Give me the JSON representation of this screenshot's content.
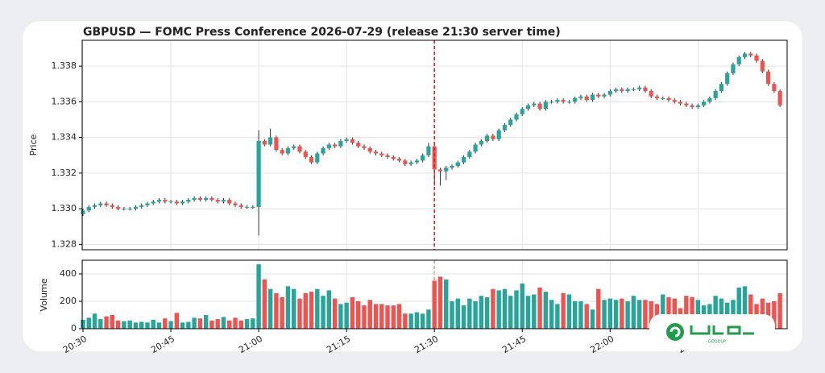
{
  "chart_data": [
    {
      "type": "candlestick",
      "title": "GBPUSD — FOMC Press Conference 2026-07-29 (release 21:30 server time)",
      "ylabel": "Price",
      "up_color": "#26a69a",
      "down_color": "#ef5350",
      "vline": "21:30",
      "vline_color": "#d62728",
      "ylim": [
        1.3277,
        1.33945
      ],
      "yticks": [
        1.328,
        {
          "value": 1.33,
          "label": "1.330"
        },
        1.332,
        1.334,
        1.336,
        1.338
      ],
      "grid": true,
      "x": [
        "20:30",
        "20:31",
        "20:32",
        "20:33",
        "20:34",
        "20:35",
        "20:36",
        "20:37",
        "20:38",
        "20:39",
        "20:40",
        "20:41",
        "20:42",
        "20:43",
        "20:44",
        "20:45",
        "20:46",
        "20:47",
        "20:48",
        "20:49",
        "20:50",
        "20:51",
        "20:52",
        "20:53",
        "20:54",
        "20:55",
        "20:56",
        "20:57",
        "20:58",
        "20:59",
        "21:00",
        "21:01",
        "21:02",
        "21:03",
        "21:04",
        "21:05",
        "21:06",
        "21:07",
        "21:08",
        "21:09",
        "21:10",
        "21:11",
        "21:12",
        "21:13",
        "21:14",
        "21:15",
        "21:16",
        "21:17",
        "21:18",
        "21:19",
        "21:20",
        "21:21",
        "21:22",
        "21:23",
        "21:24",
        "21:25",
        "21:26",
        "21:27",
        "21:28",
        "21:29",
        "21:30",
        "21:31",
        "21:32",
        "21:33",
        "21:34",
        "21:35",
        "21:36",
        "21:37",
        "21:38",
        "21:39",
        "21:40",
        "21:41",
        "21:42",
        "21:43",
        "21:44",
        "21:45",
        "21:46",
        "21:47",
        "21:48",
        "21:49",
        "21:50",
        "21:51",
        "21:52",
        "21:53",
        "21:54",
        "21:55",
        "21:56",
        "21:57",
        "21:58",
        "21:59",
        "22:00",
        "22:01",
        "22:02",
        "22:03",
        "22:04",
        "22:05",
        "22:06",
        "22:07",
        "22:08",
        "22:09",
        "22:10",
        "22:11",
        "22:12",
        "22:13",
        "22:14",
        "22:15",
        "22:16",
        "22:17",
        "22:18",
        "22:19",
        "22:20",
        "22:21",
        "22:22",
        "22:23",
        "22:24",
        "22:25",
        "22:26",
        "22:27",
        "22:28",
        "22:29"
      ],
      "open": [
        1.3297,
        1.3299,
        1.3301,
        1.3302,
        1.3303,
        1.3302,
        1.3301,
        1.33,
        1.33,
        1.33,
        1.3301,
        1.3302,
        1.3303,
        1.3304,
        1.3305,
        1.3304,
        1.3304,
        1.3303,
        1.3304,
        1.3305,
        1.3306,
        1.3305,
        1.3306,
        1.3305,
        1.3304,
        1.3305,
        1.3303,
        1.3302,
        1.3301,
        1.3301,
        1.3301,
        1.3338,
        1.3336,
        1.334,
        1.3333,
        1.3331,
        1.3334,
        1.3335,
        1.3332,
        1.3329,
        1.3326,
        1.3331,
        1.3334,
        1.3336,
        1.3335,
        1.3338,
        1.3339,
        1.3337,
        1.3335,
        1.3334,
        1.3332,
        1.3331,
        1.333,
        1.3329,
        1.3328,
        1.3327,
        1.3325,
        1.3326,
        1.3327,
        1.333,
        1.3335,
        1.3322,
        1.3321,
        1.3323,
        1.3324,
        1.3326,
        1.3329,
        1.3332,
        1.3336,
        1.3338,
        1.3341,
        1.3339,
        1.3344,
        1.3347,
        1.335,
        1.3353,
        1.3356,
        1.3358,
        1.3359,
        1.3356,
        1.336,
        1.336,
        1.3361,
        1.336,
        1.336,
        1.3362,
        1.3363,
        1.3361,
        1.3364,
        1.3363,
        1.3364,
        1.3366,
        1.3367,
        1.3366,
        1.3367,
        1.3367,
        1.3368,
        1.3366,
        1.3363,
        1.3362,
        1.3362,
        1.3361,
        1.336,
        1.3359,
        1.3358,
        1.3357,
        1.3358,
        1.336,
        1.3362,
        1.3366,
        1.337,
        1.3376,
        1.3381,
        1.3385,
        1.3387,
        1.3386,
        1.3383,
        1.3377,
        1.337,
        1.3366
      ],
      "high": [
        1.33,
        1.3302,
        1.3303,
        1.3304,
        1.3304,
        1.3303,
        1.3302,
        1.3301,
        1.3301,
        1.3302,
        1.3303,
        1.3304,
        1.3305,
        1.3306,
        1.3306,
        1.3305,
        1.3305,
        1.3305,
        1.3306,
        1.3307,
        1.3307,
        1.3307,
        1.3307,
        1.3306,
        1.3306,
        1.3306,
        1.3304,
        1.3303,
        1.3302,
        1.3302,
        1.3344,
        1.3339,
        1.3345,
        1.3341,
        1.3334,
        1.3335,
        1.3336,
        1.3336,
        1.3333,
        1.333,
        1.3332,
        1.3335,
        1.3337,
        1.3337,
        1.3339,
        1.334,
        1.334,
        1.3338,
        1.3336,
        1.3335,
        1.3333,
        1.3332,
        1.3331,
        1.333,
        1.3329,
        1.3328,
        1.3327,
        1.3328,
        1.3331,
        1.3337,
        1.3336,
        1.3323,
        1.3324,
        1.3325,
        1.3327,
        1.333,
        1.3333,
        1.3337,
        1.3339,
        1.3342,
        1.3342,
        1.3345,
        1.3348,
        1.3351,
        1.3354,
        1.3357,
        1.3359,
        1.336,
        1.336,
        1.3361,
        1.3361,
        1.3362,
        1.3362,
        1.3361,
        1.3363,
        1.3364,
        1.3364,
        1.3365,
        1.3365,
        1.3365,
        1.3367,
        1.3368,
        1.3368,
        1.3368,
        1.3368,
        1.3369,
        1.3369,
        1.3367,
        1.3364,
        1.3363,
        1.3363,
        1.3362,
        1.3361,
        1.336,
        1.3359,
        1.3359,
        1.3361,
        1.3363,
        1.3367,
        1.3371,
        1.3377,
        1.3382,
        1.3386,
        1.3388,
        1.3388,
        1.3387,
        1.3384,
        1.3378,
        1.3371,
        1.3367
      ],
      "low": [
        1.3296,
        1.3298,
        1.33,
        1.3301,
        1.3301,
        1.33,
        1.3299,
        1.3299,
        1.3299,
        1.3299,
        1.33,
        1.3301,
        1.3302,
        1.3303,
        1.3303,
        1.3303,
        1.3302,
        1.3302,
        1.3303,
        1.3304,
        1.3304,
        1.3304,
        1.3304,
        1.3303,
        1.3303,
        1.3302,
        1.3301,
        1.33,
        1.33,
        1.33,
        1.3285,
        1.3335,
        1.3335,
        1.3332,
        1.333,
        1.333,
        1.3333,
        1.3331,
        1.3328,
        1.3325,
        1.3325,
        1.333,
        1.3333,
        1.3334,
        1.3334,
        1.3337,
        1.3336,
        1.3334,
        1.3333,
        1.3331,
        1.333,
        1.3329,
        1.3328,
        1.3327,
        1.3326,
        1.3324,
        1.3324,
        1.3325,
        1.3326,
        1.3329,
        1.3313,
        1.3313,
        1.3316,
        1.3322,
        1.3323,
        1.3325,
        1.3328,
        1.3331,
        1.3335,
        1.3337,
        1.3338,
        1.3338,
        1.3343,
        1.3346,
        1.3349,
        1.3352,
        1.3355,
        1.3357,
        1.3355,
        1.3355,
        1.3359,
        1.3359,
        1.3359,
        1.3359,
        1.3359,
        1.3361,
        1.336,
        1.336,
        1.3362,
        1.3362,
        1.3363,
        1.3365,
        1.3365,
        1.3365,
        1.3366,
        1.3366,
        1.3365,
        1.3362,
        1.3361,
        1.3361,
        1.336,
        1.3359,
        1.3358,
        1.3357,
        1.3356,
        1.3356,
        1.3357,
        1.3359,
        1.3361,
        1.3365,
        1.3369,
        1.3375,
        1.338,
        1.3384,
        1.3385,
        1.3382,
        1.3376,
        1.3369,
        1.3365,
        1.3357
      ],
      "close": [
        1.3299,
        1.3301,
        1.3302,
        1.3303,
        1.3302,
        1.3301,
        1.33,
        1.33,
        1.33,
        1.3301,
        1.3302,
        1.3303,
        1.3304,
        1.3305,
        1.3304,
        1.3304,
        1.3303,
        1.3304,
        1.3305,
        1.3306,
        1.3305,
        1.3306,
        1.3305,
        1.3304,
        1.3305,
        1.3303,
        1.3302,
        1.3301,
        1.3301,
        1.3301,
        1.3338,
        1.3336,
        1.334,
        1.3333,
        1.3331,
        1.3334,
        1.3335,
        1.3332,
        1.3329,
        1.3326,
        1.3331,
        1.3334,
        1.3336,
        1.3335,
        1.3338,
        1.3339,
        1.3337,
        1.3335,
        1.3334,
        1.3332,
        1.3331,
        1.333,
        1.3329,
        1.3328,
        1.3327,
        1.3325,
        1.3326,
        1.3327,
        1.333,
        1.3335,
        1.3322,
        1.3321,
        1.3323,
        1.3324,
        1.3326,
        1.3329,
        1.3332,
        1.3336,
        1.3338,
        1.3341,
        1.3339,
        1.3344,
        1.3347,
        1.335,
        1.3353,
        1.3356,
        1.3358,
        1.3359,
        1.3356,
        1.336,
        1.336,
        1.3361,
        1.336,
        1.336,
        1.3362,
        1.3363,
        1.3361,
        1.3364,
        1.3363,
        1.3364,
        1.3366,
        1.3367,
        1.3366,
        1.3367,
        1.3367,
        1.3368,
        1.3366,
        1.3363,
        1.3362,
        1.3362,
        1.3361,
        1.336,
        1.3359,
        1.3358,
        1.3357,
        1.3358,
        1.336,
        1.3362,
        1.3366,
        1.337,
        1.3376,
        1.3381,
        1.3385,
        1.3387,
        1.3386,
        1.3383,
        1.3377,
        1.337,
        1.3366,
        1.3358
      ]
    },
    {
      "type": "bar",
      "ylabel": "Volume",
      "ylim": [
        0,
        500
      ],
      "yticks": [
        0,
        200,
        400
      ],
      "grid": true,
      "xticks": [
        "20:30",
        "20:45",
        "21:00",
        "21:15",
        "21:30",
        "21:45",
        "22:00",
        "22:15"
      ],
      "values": [
        65,
        80,
        110,
        70,
        90,
        100,
        60,
        55,
        60,
        45,
        50,
        45,
        65,
        45,
        75,
        55,
        115,
        45,
        50,
        80,
        75,
        100,
        60,
        70,
        85,
        60,
        80,
        60,
        70,
        75,
        470,
        360,
        290,
        260,
        230,
        310,
        290,
        220,
        260,
        270,
        290,
        240,
        280,
        220,
        180,
        190,
        230,
        200,
        170,
        210,
        180,
        180,
        170,
        170,
        180,
        110,
        110,
        120,
        110,
        140,
        350,
        380,
        360,
        200,
        220,
        170,
        220,
        200,
        240,
        230,
        290,
        280,
        290,
        240,
        280,
        330,
        240,
        250,
        300,
        270,
        210,
        180,
        260,
        250,
        200,
        200,
        180,
        140,
        290,
        210,
        220,
        210,
        220,
        200,
        240,
        210,
        210,
        200,
        180,
        250,
        230,
        220,
        150,
        240,
        230,
        210,
        170,
        180,
        240,
        220,
        190,
        210,
        300,
        310,
        250,
        180,
        220,
        190,
        200,
        260
      ]
    }
  ],
  "watermark": "GOODUP"
}
